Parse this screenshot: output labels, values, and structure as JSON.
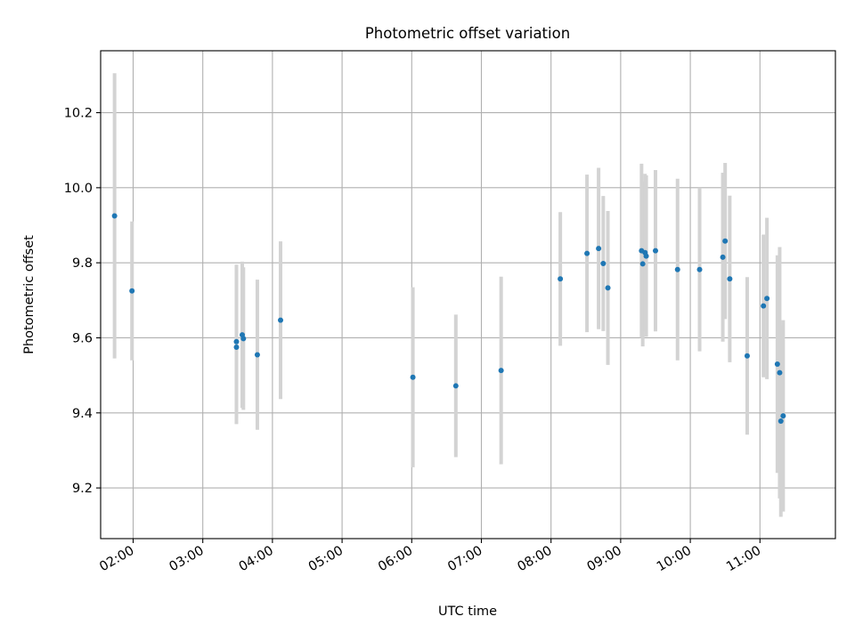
{
  "chart_data": {
    "type": "scatter",
    "title": "Photometric offset variation",
    "xlabel": "UTC time",
    "ylabel": "Photometric offset",
    "grid": true,
    "marker_color": "#1f77b4",
    "errorbar_color": "#d3d3d3",
    "xlim": [
      "01:32",
      "12:05"
    ],
    "ylim": [
      9.065,
      10.365
    ],
    "x_ticks": [
      "02:00",
      "03:00",
      "04:00",
      "05:00",
      "06:00",
      "07:00",
      "08:00",
      "09:00",
      "10:00",
      "11:00"
    ],
    "y_ticks": [
      "9.2",
      "9.4",
      "9.6",
      "9.8",
      "10.0",
      "10.2"
    ],
    "series": [
      {
        "points": [
          {
            "x": "01:44",
            "y": 9.925,
            "err": 0.38
          },
          {
            "x": "01:59",
            "y": 9.725,
            "err": 0.185
          },
          {
            "x": "03:29",
            "y": 9.59,
            "err": 0.205
          },
          {
            "x": "03:29",
            "y": 9.575,
            "err": 0.205
          },
          {
            "x": "03:34",
            "y": 9.608,
            "err": 0.195
          },
          {
            "x": "03:35",
            "y": 9.598,
            "err": 0.19
          },
          {
            "x": "03:47",
            "y": 9.555,
            "err": 0.2
          },
          {
            "x": "04:07",
            "y": 9.647,
            "err": 0.21
          },
          {
            "x": "06:01",
            "y": 9.495,
            "err": 0.24
          },
          {
            "x": "06:38",
            "y": 9.472,
            "err": 0.19
          },
          {
            "x": "07:17",
            "y": 9.513,
            "err": 0.25
          },
          {
            "x": "08:08",
            "y": 9.757,
            "err": 0.178
          },
          {
            "x": "08:31",
            "y": 9.825,
            "err": 0.21
          },
          {
            "x": "08:41",
            "y": 9.838,
            "err": 0.215
          },
          {
            "x": "08:45",
            "y": 9.798,
            "err": 0.18
          },
          {
            "x": "08:49",
            "y": 9.733,
            "err": 0.205
          },
          {
            "x": "09:18",
            "y": 9.832,
            "err": 0.232
          },
          {
            "x": "09:19",
            "y": 9.797,
            "err": 0.22
          },
          {
            "x": "09:21",
            "y": 9.827,
            "err": 0.21
          },
          {
            "x": "09:22",
            "y": 9.818,
            "err": 0.215
          },
          {
            "x": "09:30",
            "y": 9.832,
            "err": 0.215
          },
          {
            "x": "09:49",
            "y": 9.782,
            "err": 0.242
          },
          {
            "x": "10:08",
            "y": 9.782,
            "err": 0.218
          },
          {
            "x": "10:28",
            "y": 9.815,
            "err": 0.225
          },
          {
            "x": "10:30",
            "y": 9.858,
            "err": 0.208
          },
          {
            "x": "10:34",
            "y": 9.757,
            "err": 0.222
          },
          {
            "x": "10:49",
            "y": 9.552,
            "err": 0.21
          },
          {
            "x": "11:03",
            "y": 9.685,
            "err": 0.19
          },
          {
            "x": "11:06",
            "y": 9.705,
            "err": 0.215
          },
          {
            "x": "11:15",
            "y": 9.53,
            "err": 0.29
          },
          {
            "x": "11:17",
            "y": 9.507,
            "err": 0.335
          },
          {
            "x": "11:18",
            "y": 9.378,
            "err": 0.255
          },
          {
            "x": "11:20",
            "y": 9.392,
            "err": 0.255
          }
        ]
      }
    ]
  }
}
